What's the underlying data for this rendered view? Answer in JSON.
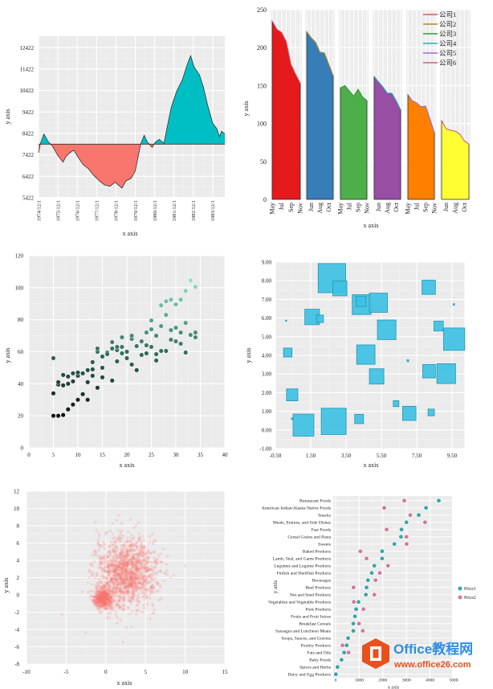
{
  "chart_data": [
    {
      "type": "area",
      "xlabel": "x axis",
      "ylabel": "y axis",
      "baseline": 7922,
      "ylim": [
        5422,
        12422
      ],
      "yticks": [
        5422,
        6422,
        7422,
        8422,
        9422,
        10422,
        11422,
        12422
      ],
      "xtick_labels": [
        "1974/12/1",
        "1975/12/1",
        "1976/12/1",
        "1977/12/1",
        "1978/12/1",
        "1979/12/1",
        "1980/12/1",
        "1981/12/1",
        "1982/12/1",
        "1983/12/1"
      ],
      "colors": {
        "above": "#00bfc4",
        "below": "#f8766d",
        "line": "#333333"
      },
      "points": [
        [
          1974.92,
          7522
        ],
        [
          1975.02,
          7960
        ],
        [
          1975.2,
          8397
        ],
        [
          1975.43,
          8022
        ],
        [
          1975.64,
          7835
        ],
        [
          1975.91,
          7397
        ],
        [
          1976.19,
          7085
        ],
        [
          1976.33,
          7335
        ],
        [
          1976.54,
          7522
        ],
        [
          1976.74,
          7647
        ],
        [
          1976.95,
          7335
        ],
        [
          1977.23,
          6960
        ],
        [
          1977.5,
          6772
        ],
        [
          1977.78,
          6460
        ],
        [
          1978.06,
          6210
        ],
        [
          1978.33,
          6022
        ],
        [
          1978.61,
          5960
        ],
        [
          1978.88,
          6147
        ],
        [
          1979.23,
          5872
        ],
        [
          1979.44,
          6210
        ],
        [
          1979.71,
          6335
        ],
        [
          1979.92,
          6672
        ],
        [
          1980.2,
          7935
        ],
        [
          1980.38,
          8335
        ],
        [
          1980.54,
          8022
        ],
        [
          1980.79,
          7772
        ],
        [
          1980.96,
          8022
        ],
        [
          1981.16,
          8147
        ],
        [
          1981.4,
          7960
        ],
        [
          1981.58,
          8772
        ],
        [
          1981.78,
          9647
        ],
        [
          1982.06,
          10397
        ],
        [
          1982.34,
          10897
        ],
        [
          1982.61,
          11647
        ],
        [
          1982.78,
          12047
        ],
        [
          1982.96,
          11522
        ],
        [
          1983.24,
          11147
        ],
        [
          1983.44,
          10585
        ],
        [
          1983.65,
          9772
        ],
        [
          1983.92,
          8897
        ],
        [
          1984.13,
          8647
        ],
        [
          1984.27,
          8272
        ],
        [
          1984.38,
          8522
        ],
        [
          1984.55,
          8397
        ]
      ]
    },
    {
      "type": "area",
      "xlabel": "x axis",
      "ylabel": "y axis",
      "ylim": [
        0,
        250
      ],
      "yticks": [
        0,
        50,
        100,
        150,
        200,
        250
      ],
      "legend_position": "top-right",
      "series": [
        {
          "name": "公司1",
          "legend_color": "#e0566b",
          "fill": "#e41a1c",
          "month_labels": [
            "May",
            "Jul",
            "Sep",
            "Nov"
          ],
          "values": [
            235,
            224,
            220,
            208,
            178,
            165,
            153
          ]
        },
        {
          "name": "公司2",
          "legend_color": "#b5891f",
          "fill": "#377eb8",
          "month_labels": [
            "Jun",
            "Aug",
            "Oct"
          ],
          "values": [
            221,
            213,
            207,
            194,
            193,
            178,
            163
          ]
        },
        {
          "name": "公司3",
          "legend_color": "#3a9a3a",
          "fill": "#4daf4a",
          "month_labels": [
            "May",
            "Jul",
            "Sep",
            "Nov"
          ],
          "values": [
            147,
            150,
            143,
            136,
            145,
            135,
            130
          ]
        },
        {
          "name": "公司4",
          "legend_color": "#22b3c4",
          "fill": "#984ea3",
          "month_labels": [
            "Jun",
            "Aug",
            "Oct"
          ],
          "values": [
            162,
            155,
            148,
            140,
            140,
            130,
            118
          ]
        },
        {
          "name": "公司5",
          "legend_color": "#9b6fd0",
          "fill": "#ff7f00",
          "month_labels": [
            "May",
            "Jul",
            "Sep",
            "Nov"
          ],
          "values": [
            138,
            130,
            127,
            122,
            123,
            106,
            88
          ]
        },
        {
          "name": "公司6",
          "legend_color": "#d0607a",
          "fill": "#ffff33",
          "month_labels": [
            "Jun",
            "Aug",
            "Oct"
          ],
          "values": [
            104,
            93,
            91,
            90,
            86,
            77,
            73
          ]
        }
      ]
    },
    {
      "type": "scatter",
      "xlabel": "x axis",
      "ylabel": "y axis",
      "xlim": [
        0,
        40
      ],
      "ylim": [
        0,
        120
      ],
      "xticks": [
        0,
        5,
        10,
        15,
        20,
        25,
        30,
        35,
        40
      ],
      "yticks": [
        0,
        20,
        40,
        60,
        80,
        100,
        120
      ],
      "color_low": "#111111",
      "color_high": "#8fe0cf",
      "points": [
        [
          5,
          56
        ],
        [
          5,
          34
        ],
        [
          5,
          20
        ],
        [
          6,
          20
        ],
        [
          7,
          20.5
        ],
        [
          6,
          39.5
        ],
        [
          6,
          41
        ],
        [
          7,
          39
        ],
        [
          7,
          45.5
        ],
        [
          8,
          40
        ],
        [
          8,
          44.5
        ],
        [
          8,
          24
        ],
        [
          9,
          27
        ],
        [
          9,
          41.5
        ],
        [
          9,
          46.5
        ],
        [
          10,
          45
        ],
        [
          10,
          47
        ],
        [
          10,
          30
        ],
        [
          11,
          46.5
        ],
        [
          11,
          33.5
        ],
        [
          12,
          30
        ],
        [
          12,
          41
        ],
        [
          12,
          48.5
        ],
        [
          13,
          49
        ],
        [
          13,
          45
        ],
        [
          13,
          53.5
        ],
        [
          14,
          37.5
        ],
        [
          14,
          60
        ],
        [
          14,
          62
        ],
        [
          15,
          57
        ],
        [
          15,
          50
        ],
        [
          15,
          44
        ],
        [
          16,
          59.5
        ],
        [
          16,
          58.5
        ],
        [
          17,
          42
        ],
        [
          17,
          62
        ],
        [
          17,
          66
        ],
        [
          18,
          54
        ],
        [
          18,
          61
        ],
        [
          18,
          63
        ],
        [
          19,
          59
        ],
        [
          19,
          63
        ],
        [
          19,
          69
        ],
        [
          20,
          56
        ],
        [
          20,
          60
        ],
        [
          21,
          52
        ],
        [
          21,
          68
        ],
        [
          21,
          70
        ],
        [
          22,
          48.5
        ],
        [
          22,
          63.5
        ],
        [
          23,
          58
        ],
        [
          23,
          66.5
        ],
        [
          24,
          59
        ],
        [
          24,
          64
        ],
        [
          24,
          72
        ],
        [
          25,
          63
        ],
        [
          25,
          74
        ],
        [
          25,
          79.5
        ],
        [
          26,
          54.5
        ],
        [
          26,
          58.5
        ],
        [
          26,
          70
        ],
        [
          27,
          60.5
        ],
        [
          27,
          76
        ],
        [
          27,
          89
        ],
        [
          28,
          60.5
        ],
        [
          28,
          83
        ],
        [
          28,
          91.5
        ],
        [
          29,
          67.5
        ],
        [
          29,
          73.5
        ],
        [
          29,
          92.5
        ],
        [
          30,
          66.5
        ],
        [
          30,
          75
        ],
        [
          30,
          89.5
        ],
        [
          31,
          65
        ],
        [
          31,
          72
        ],
        [
          31,
          92.5
        ],
        [
          32,
          59.5
        ],
        [
          32,
          78
        ],
        [
          32,
          98
        ],
        [
          33,
          70.5
        ],
        [
          33,
          104.5
        ],
        [
          34,
          69
        ],
        [
          34,
          72
        ],
        [
          34,
          100.5
        ]
      ]
    },
    {
      "type": "scatter",
      "marker": "square",
      "xlabel": "x axis",
      "ylabel": "y axis",
      "xlim": [
        -0.5,
        10.2
      ],
      "ylim": [
        -1,
        9
      ],
      "xtick_labels": [
        "-0.50",
        "1.50",
        "3.50",
        "5.50",
        "7.50",
        "9.50"
      ],
      "ytick_labels": [
        "-1.00",
        "0.00",
        "1.00",
        "2.00",
        "3.00",
        "4.00",
        "5.00",
        "6.00",
        "7.00",
        "8.00",
        "9.00"
      ],
      "color": "#3ec1e3",
      "edge_color": "#2a93b0",
      "points_x_y_size": [
        [
          2.7,
          8.14,
          1.56
        ],
        [
          3.15,
          7.59,
          0.8
        ],
        [
          4.38,
          6.72,
          1.06
        ],
        [
          4.35,
          6.9,
          0.55
        ],
        [
          5.33,
          6.82,
          1.03
        ],
        [
          1.58,
          6.06,
          0.83
        ],
        [
          2.02,
          5.96,
          0.4
        ],
        [
          5.8,
          5.37,
          1.05
        ],
        [
          8.18,
          7.65,
          0.76
        ],
        [
          8.74,
          5.57,
          0.53
        ],
        [
          9.62,
          4.87,
          1.2
        ],
        [
          0.2,
          4.15,
          0.48
        ],
        [
          4.62,
          4.04,
          1.04
        ],
        [
          8.2,
          3.15,
          0.72
        ],
        [
          9.17,
          3.02,
          1.06
        ],
        [
          5.23,
          2.87,
          0.82
        ],
        [
          0.45,
          1.88,
          0.64
        ],
        [
          6.33,
          1.41,
          0.32
        ],
        [
          7.08,
          0.89,
          0.76
        ],
        [
          8.32,
          0.94,
          0.36
        ],
        [
          1.09,
          0.26,
          1.18
        ],
        [
          2.8,
          0.46,
          1.41
        ],
        [
          4.24,
          0.59,
          0.5
        ],
        [
          0.11,
          5.86,
          0.06
        ],
        [
          7.0,
          3.71,
          0.1
        ],
        [
          9.6,
          6.73,
          0.08
        ],
        [
          0.44,
          0.6,
          0.08
        ]
      ]
    },
    {
      "type": "scatter",
      "xlabel": "x axis",
      "ylabel": "y axis",
      "xlim": [
        -10,
        15
      ],
      "ylim": [
        -8,
        12
      ],
      "xticks": [
        -10,
        -5,
        0,
        5,
        10,
        15
      ],
      "yticks": [
        -8,
        -6,
        -4,
        -2,
        0,
        2,
        4,
        6,
        8,
        10,
        12
      ],
      "color": "#f8766d",
      "clusters": [
        {
          "center": [
            2.6,
            2.6
          ],
          "spread": [
            1.9,
            2.0
          ],
          "count": 1400
        },
        {
          "center": [
            -0.3,
            -0.4
          ],
          "spread": [
            0.6,
            0.55
          ],
          "count": 500
        }
      ]
    },
    {
      "type": "scatter",
      "subtype": "dot-plot",
      "xlabel": "x axis",
      "ylabel": "y axis",
      "xlim": [
        0,
        5000
      ],
      "xticks": [
        0,
        1000,
        2000,
        3000,
        4000,
        5000
      ],
      "legend_position": "right",
      "series": [
        {
          "name": "Price1",
          "color": "#3aa6a6"
        },
        {
          "name": "Price2",
          "color": "#cf7a9c"
        }
      ],
      "categories": [
        "Restaurant Foods",
        "American Indian/Alaska Native Foods",
        "Snacks",
        "Meals, Entrees, and Side Dishes",
        "Fast Foods",
        "Cereal Grains and Pasta",
        "Sweets",
        "Baked Products",
        "Lamb, Veal, and Game Products",
        "Legumes and Legume Products",
        "Finfish and Shellfish Products",
        "Beverages",
        "Beef Products",
        "Nut and Seed Products",
        "Vegetables and Vegetable Products",
        "Pork Products",
        "Fruits and Fruit Juices",
        "Breakfast Cereals",
        "Sausages and Luncheon Meats",
        "Soups, Sauces, and Gravies",
        "Poultry Products",
        "Fats and Oils",
        "Baby Foods",
        "Spices and Herbs",
        "Dairy and Egg Products"
      ],
      "price1": [
        4370,
        3830,
        3520,
        3000,
        2790,
        2770,
        2490,
        1970,
        1970,
        1640,
        1530,
        1370,
        1310,
        1280,
        970,
        870,
        820,
        750,
        750,
        530,
        470,
        360,
        250,
        80,
        10
      ],
      "price2": [
        2910,
        2060,
        3160,
        3790,
        2160,
        3000,
        3010,
        1050,
        1310,
        2220,
        1870,
        1690,
        760,
        1640,
        770,
        1180,
        820,
        990,
        1150,
        530,
        290,
        550,
        250,
        80,
        10
      ]
    }
  ],
  "watermark": {
    "brand": "Office教程网",
    "url": "www.office26.com"
  }
}
